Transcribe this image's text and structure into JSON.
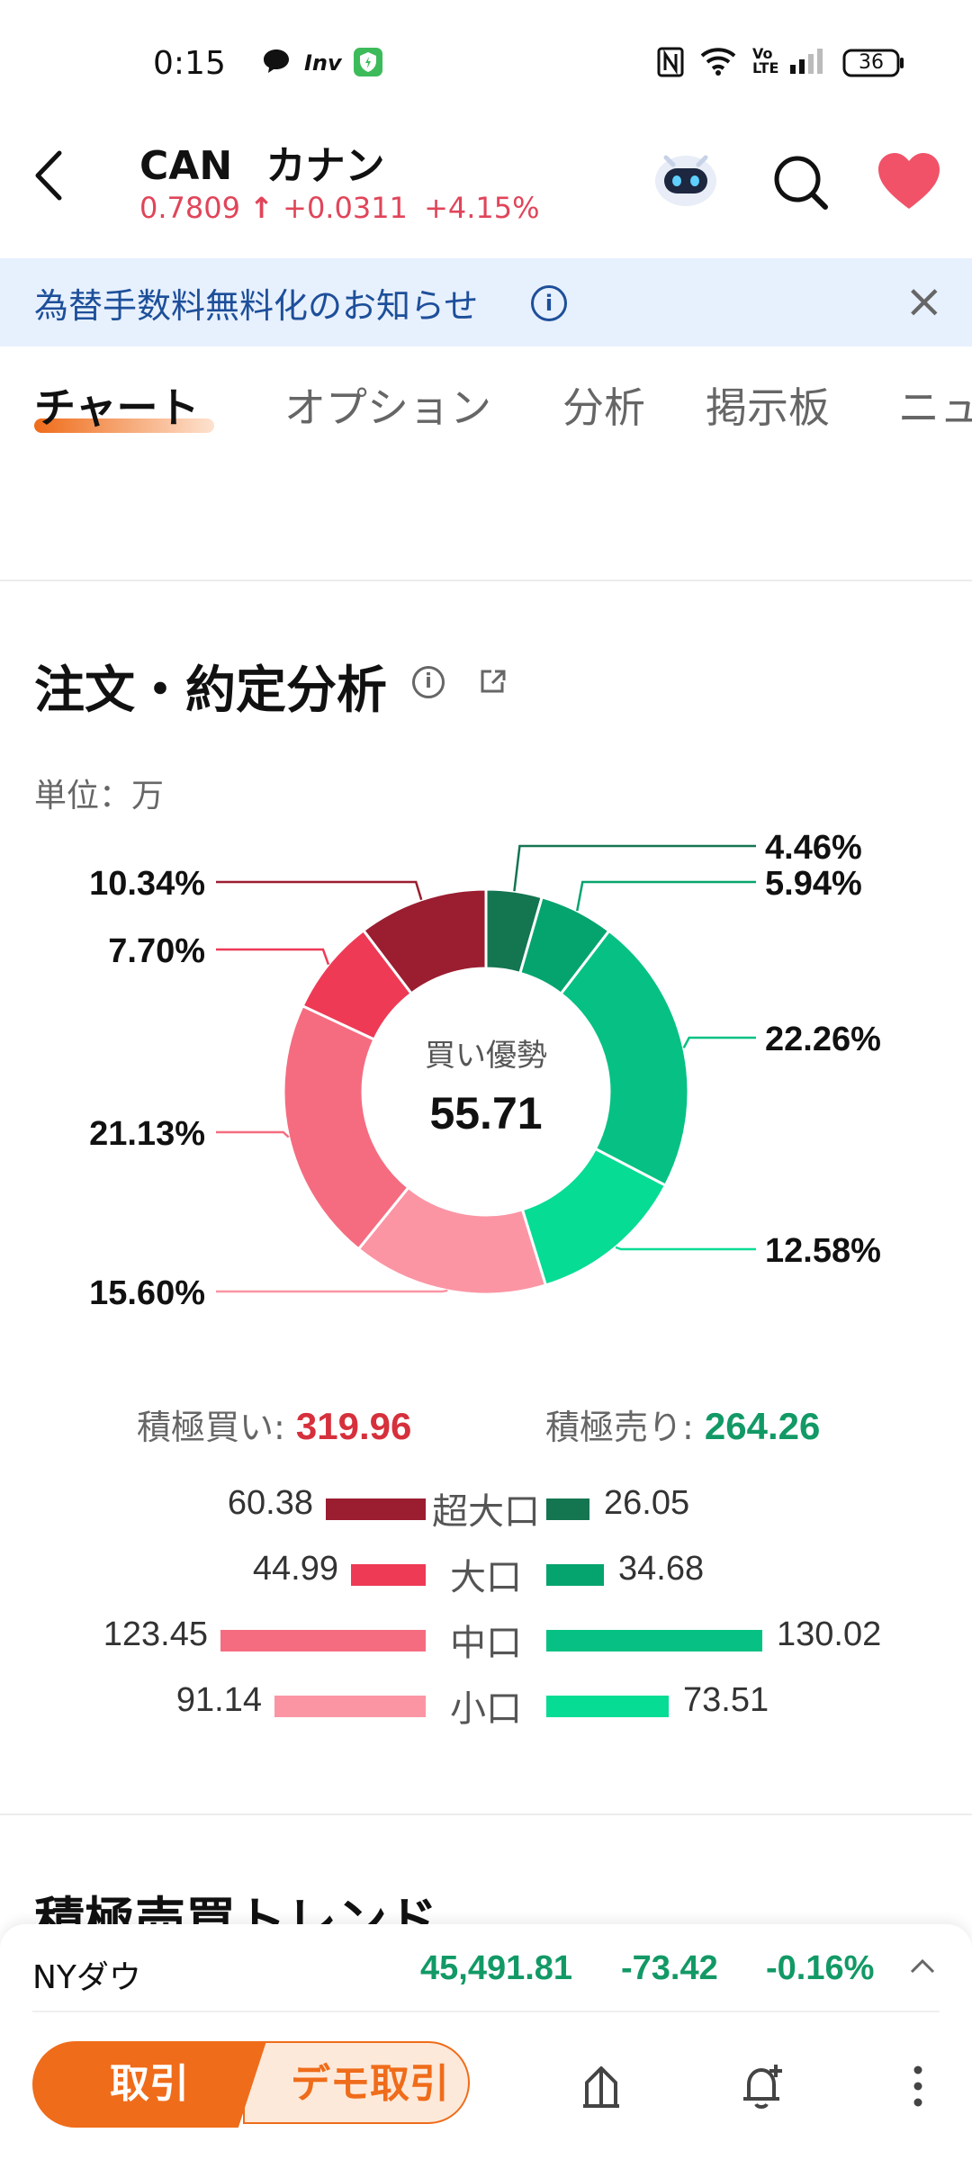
{
  "status_bar": {
    "time": "0:15",
    "battery": "36",
    "icons": [
      "chat-icon",
      "inv-icon",
      "shield-app-icon",
      "nfc-icon",
      "wifi-icon",
      "volte-icon",
      "signal-icon",
      "battery-icon"
    ],
    "inv_label": "Inv",
    "volte_label": "Vo LTE"
  },
  "header": {
    "ticker": "CAN",
    "name": "カナン",
    "price": "0.7809",
    "change": "+0.0311",
    "change_pct": "+4.15%",
    "price_color": "#e0455a"
  },
  "banner": {
    "text": "為替手数料無料化のお知らせ",
    "info_glyph": "i",
    "close_glyph": "×"
  },
  "tabs": [
    "チャート",
    "オプション",
    "分析",
    "掲示板",
    "ニュ"
  ],
  "section": {
    "title": "注文・約定分析",
    "info_glyph": "i",
    "unit": "単位：万"
  },
  "chart_data": {
    "type": "pie",
    "center_label": "買い優勢",
    "center_value": "55.71",
    "slices": [
      {
        "label": "4.46%",
        "value": 4.46,
        "color": "#147551"
      },
      {
        "label": "5.94%",
        "value": 5.94,
        "color": "#05a46e"
      },
      {
        "label": "22.26%",
        "value": 22.26,
        "color": "#06c183"
      },
      {
        "label": "12.58%",
        "value": 12.58,
        "color": "#06dc94"
      },
      {
        "label": "15.60%",
        "value": 15.6,
        "color": "#fb95a4"
      },
      {
        "label": "21.13%",
        "value": 21.13,
        "color": "#f56c80"
      },
      {
        "label": "7.70%",
        "value": 7.7,
        "color": "#ee3a55"
      },
      {
        "label": "10.34%",
        "value": 10.34,
        "color": "#9b1d30"
      }
    ]
  },
  "totals": {
    "buy_label": "積極買い: ",
    "buy_value": "319.96",
    "sell_label": "積極売り: ",
    "sell_value": "264.26"
  },
  "breakdown": [
    {
      "label": "超大口",
      "buy": "60.38",
      "sell": "26.05",
      "buy_num": 60.38,
      "sell_num": 26.05,
      "buy_color": "#9b1d30",
      "sell_color": "#147551"
    },
    {
      "label": "大口",
      "buy": "44.99",
      "sell": "34.68",
      "buy_num": 44.99,
      "sell_num": 34.68,
      "buy_color": "#ee3a55",
      "sell_color": "#05a46e"
    },
    {
      "label": "中口",
      "buy": "123.45",
      "sell": "130.02",
      "buy_num": 123.45,
      "sell_num": 130.02,
      "buy_color": "#f56c80",
      "sell_color": "#06c183"
    },
    {
      "label": "小口",
      "buy": "91.14",
      "sell": "73.51",
      "buy_num": 91.14,
      "sell_num": 73.51,
      "buy_color": "#fb95a4",
      "sell_color": "#06dc94"
    }
  ],
  "next_section_title": "積極売買トレンド",
  "index_ticker": {
    "name": "NYダウ",
    "value": "45,491.81",
    "change": "-73.42",
    "change_pct": "-0.16%",
    "color": "#129966"
  },
  "bottom_bar": {
    "trade_label": "取引",
    "demo_label": "デモ取引",
    "icons": [
      "compare-icon",
      "alert-bell-icon",
      "more-icon"
    ]
  }
}
